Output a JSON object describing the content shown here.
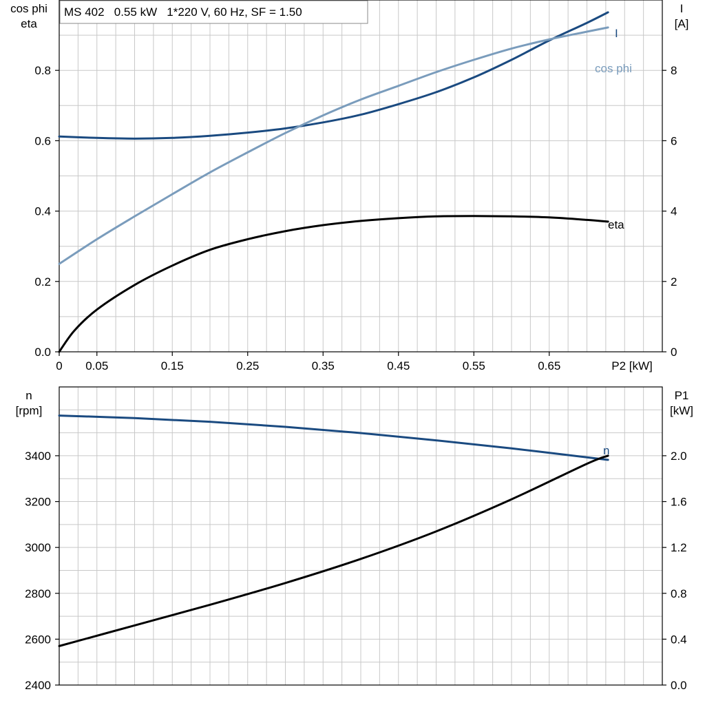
{
  "chart_data": [
    {
      "type": "line",
      "title": "MS 402   0.55 kW   1*220 V, 60 Hz, SF = 1.50",
      "xlabel": "P2 [kW]",
      "xlim": [
        0,
        0.8
      ],
      "xticks": [
        0,
        0.05,
        0.15,
        0.25,
        0.35,
        0.45,
        0.55,
        0.65
      ],
      "ylabel_left": [
        "cos phi",
        "eta"
      ],
      "ylim_left": [
        0,
        1.0
      ],
      "yticks_left": [
        "0.0",
        "0.2",
        "0.4",
        "0.6",
        "0.8"
      ],
      "ylabel_right": [
        "I",
        "[A]"
      ],
      "ylim_right": [
        0,
        10
      ],
      "yticks_right": [
        "0",
        "2",
        "4",
        "6",
        "8"
      ],
      "grid": true,
      "series": [
        {
          "name": "I",
          "axis": "right",
          "color": "#1a4a80",
          "x": [
            0,
            0.05,
            0.1,
            0.15,
            0.2,
            0.25,
            0.3,
            0.35,
            0.4,
            0.45,
            0.5,
            0.55,
            0.6,
            0.65,
            0.7,
            0.728
          ],
          "values": [
            6.12,
            6.08,
            6.06,
            6.08,
            6.14,
            6.23,
            6.35,
            6.52,
            6.74,
            7.04,
            7.38,
            7.8,
            8.3,
            8.85,
            9.35,
            9.65
          ]
        },
        {
          "name": "cos phi",
          "axis": "left",
          "color": "#7a9cbc",
          "x": [
            0,
            0.05,
            0.1,
            0.15,
            0.2,
            0.25,
            0.3,
            0.35,
            0.4,
            0.45,
            0.5,
            0.55,
            0.6,
            0.65,
            0.7,
            0.728
          ],
          "values": [
            0.25,
            0.32,
            0.385,
            0.448,
            0.51,
            0.567,
            0.622,
            0.672,
            0.717,
            0.756,
            0.795,
            0.83,
            0.862,
            0.888,
            0.91,
            0.922
          ]
        },
        {
          "name": "eta",
          "axis": "left",
          "color": "#000000",
          "x": [
            0,
            0.02,
            0.05,
            0.1,
            0.15,
            0.2,
            0.25,
            0.3,
            0.35,
            0.4,
            0.45,
            0.5,
            0.55,
            0.6,
            0.65,
            0.7,
            0.728
          ],
          "values": [
            0.0,
            0.06,
            0.12,
            0.19,
            0.245,
            0.29,
            0.32,
            0.343,
            0.36,
            0.372,
            0.38,
            0.385,
            0.386,
            0.385,
            0.382,
            0.375,
            0.37
          ]
        }
      ]
    },
    {
      "type": "line",
      "xlim": [
        0,
        0.8
      ],
      "ylabel_left": [
        "n",
        "[rpm]"
      ],
      "ylim_left": [
        2400,
        3700
      ],
      "yticks_left": [
        "2400",
        "2600",
        "2800",
        "3000",
        "3200",
        "3400"
      ],
      "ylabel_right": [
        "P1",
        "[kW]"
      ],
      "ylim_right": [
        0,
        2.6
      ],
      "yticks_right": [
        "0.0",
        "0.4",
        "0.8",
        "1.2",
        "1.6",
        "2.0"
      ],
      "grid": true,
      "series": [
        {
          "name": "n",
          "axis": "left",
          "color": "#1a4a80",
          "x": [
            0,
            0.1,
            0.2,
            0.3,
            0.4,
            0.5,
            0.6,
            0.7,
            0.728
          ],
          "values": [
            3575,
            3564,
            3548,
            3526,
            3499,
            3467,
            3432,
            3393,
            3382
          ]
        },
        {
          "name": "P1",
          "axis": "right",
          "color": "#000000",
          "x": [
            0,
            0.1,
            0.2,
            0.3,
            0.4,
            0.5,
            0.6,
            0.7,
            0.728
          ],
          "values": [
            0.34,
            0.52,
            0.7,
            0.89,
            1.1,
            1.34,
            1.62,
            1.93,
            2.0
          ]
        }
      ]
    }
  ]
}
